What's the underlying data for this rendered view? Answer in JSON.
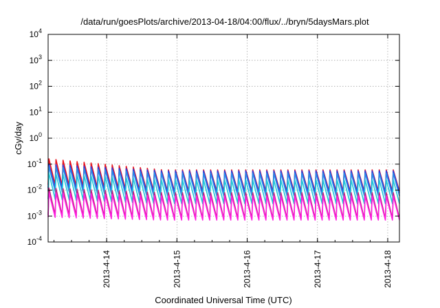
{
  "chart_data": {
    "type": "line",
    "title": "/data/run/goesPlots/archive/2013-04-18/04:00/flux/../bryn/5daysMars.plot",
    "xlabel": "Coordinated Universal Time (UTC)",
    "ylabel": "cGy/day",
    "x_start": "2013-04-13T04:00Z",
    "x_end": "2013-04-18T04:00Z",
    "x_ticks": [
      "2013-4-14",
      "2013-4-15",
      "2013-4-16",
      "2013-4-17",
      "2013-4-18"
    ],
    "ylim": [
      0.0001,
      10000
    ],
    "y_scale": "log",
    "y_ticks": [
      {
        "base": "10",
        "exp": "4"
      },
      {
        "base": "10",
        "exp": "3"
      },
      {
        "base": "10",
        "exp": "2"
      },
      {
        "base": "10",
        "exp": "1"
      },
      {
        "base": "10",
        "exp": "0"
      },
      {
        "base": "10",
        "exp": "-1"
      },
      {
        "base": "10",
        "exp": "-2"
      },
      {
        "base": "10",
        "exp": "-3"
      },
      {
        "base": "10",
        "exp": "-4"
      }
    ],
    "grid": true,
    "sawtooth_cycles": 50,
    "series": [
      {
        "color": "#e8141e",
        "peak_start": 0.16,
        "peak_end": 0.06,
        "trough_start": 0.016,
        "trough_end": 0.009
      },
      {
        "color": "#2a3de0",
        "peak_start": 0.1,
        "peak_end": 0.055,
        "trough_start": 0.012,
        "trough_end": 0.008
      },
      {
        "color": "#2a8ce8",
        "peak_start": 0.08,
        "peak_end": 0.045,
        "trough_start": 0.009,
        "trough_end": 0.006
      },
      {
        "color": "#20c8d8",
        "peak_start": 0.045,
        "peak_end": 0.025,
        "trough_start": 0.0045,
        "trough_end": 0.003
      },
      {
        "color": "#c02080",
        "peak_start": 0.012,
        "peak_end": 0.008,
        "trough_start": 0.0011,
        "trough_end": 0.0008
      },
      {
        "color": "#ff20e0",
        "peak_start": 0.008,
        "peak_end": 0.006,
        "trough_start": 0.0009,
        "trough_end": 0.0007
      }
    ]
  }
}
